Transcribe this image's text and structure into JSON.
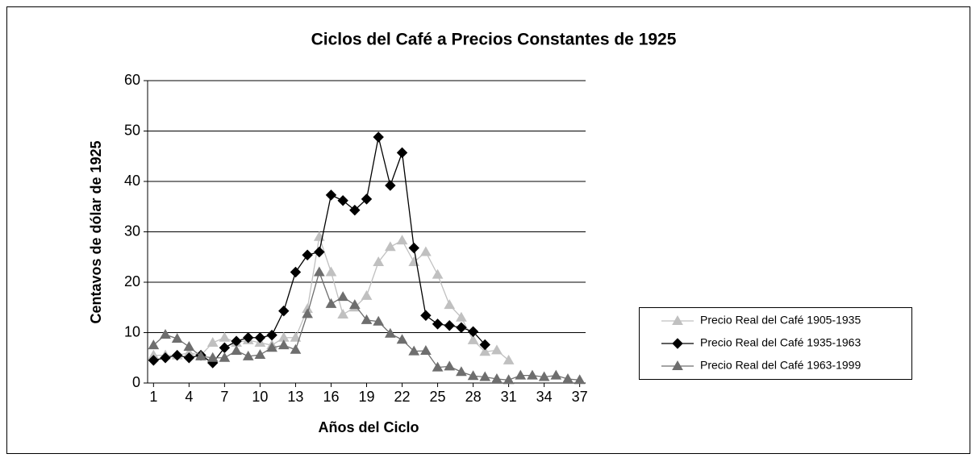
{
  "chart_data": {
    "type": "line",
    "title": "Ciclos del Café a Precios Constantes de 1925",
    "x_label": "Años del Ciclo",
    "y_label": "Centavos de dólar de 1925",
    "x": [
      1,
      2,
      3,
      4,
      5,
      6,
      7,
      8,
      9,
      10,
      11,
      12,
      13,
      14,
      15,
      16,
      17,
      18,
      19,
      20,
      21,
      22,
      23,
      24,
      25,
      26,
      27,
      28,
      29,
      30,
      31,
      32,
      33,
      34,
      35,
      36,
      37
    ],
    "xlim": [
      0.5,
      37.5
    ],
    "xticks": [
      1,
      4,
      7,
      10,
      13,
      16,
      19,
      22,
      25,
      28,
      31,
      34,
      37
    ],
    "ylim": [
      0,
      60
    ],
    "yticks": [
      0,
      10,
      20,
      30,
      40,
      50,
      60
    ],
    "grid": true,
    "legend": "right",
    "series": [
      {
        "name": "Precio Real del Café 1905-1935",
        "color": "#c0c0c0",
        "marker": "triangle",
        "values": [
          5.5,
          5.5,
          5.5,
          6,
          5.5,
          8,
          9,
          8,
          8.5,
          8,
          7.5,
          9,
          9,
          14.7,
          29,
          22,
          13.6,
          15,
          17.3,
          24,
          27,
          28.3,
          24,
          26,
          21.5,
          15.5,
          13,
          8.5,
          6.2,
          6.5,
          4.5,
          null,
          null,
          null,
          null,
          null,
          null
        ]
      },
      {
        "name": "Precio Real del Café 1935-1963",
        "color": "#000000",
        "marker": "diamond",
        "values": [
          4.5,
          5,
          5.5,
          5,
          5.5,
          4,
          7,
          8.3,
          9,
          9,
          9.5,
          14.3,
          22,
          25.4,
          26,
          37.3,
          36.2,
          34.3,
          36.5,
          48.8,
          39.2,
          45.7,
          26.8,
          13.4,
          11.7,
          11.4,
          11,
          10.2,
          7.6,
          null,
          null,
          null,
          null,
          null,
          null,
          null,
          null
        ]
      },
      {
        "name": "Precio Real del Café 1963-1999",
        "color": "#6e6e6e",
        "marker": "triangle",
        "values": [
          7.5,
          9.6,
          8.8,
          7.2,
          5.3,
          5,
          5,
          6.4,
          5.3,
          5.6,
          7,
          7.5,
          6.6,
          13.7,
          22,
          15.7,
          17.1,
          15.5,
          12.5,
          12.2,
          9.8,
          8.6,
          6.3,
          6.4,
          3.1,
          3.3,
          2.2,
          1.4,
          1.2,
          0.8,
          0.6,
          1.5,
          1.5,
          1.2,
          1.5,
          0.8,
          0.6
        ]
      }
    ]
  }
}
